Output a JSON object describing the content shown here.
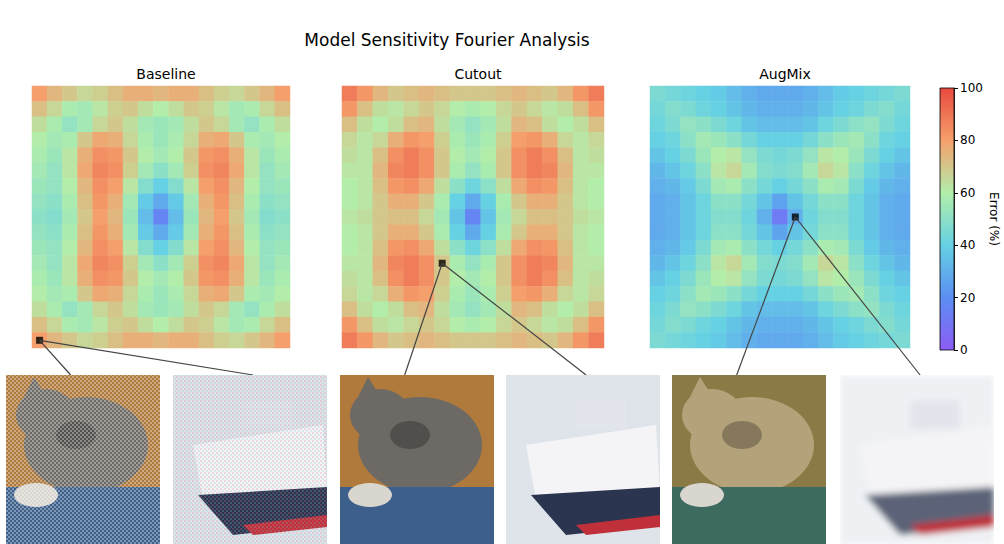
{
  "chart_data": {
    "type": "heatmap",
    "title": "Model Sensitivity Fourier Analysis",
    "tick_labels": false,
    "colorbar": {
      "label": "Error (%)",
      "range": [
        0,
        100
      ],
      "ticks": [
        0,
        20,
        40,
        60,
        80,
        100
      ]
    },
    "panels": [
      {
        "title": "Baseline",
        "marked_cell": [
          16,
          0
        ],
        "cells": [
          [
            80,
            74,
            70,
            66,
            68,
            72,
            76,
            76,
            74,
            76,
            76,
            72,
            68,
            66,
            70,
            74,
            80
          ],
          [
            72,
            66,
            58,
            56,
            62,
            68,
            70,
            64,
            60,
            64,
            70,
            68,
            62,
            56,
            58,
            66,
            72
          ],
          [
            64,
            58,
            52,
            56,
            66,
            70,
            64,
            56,
            54,
            56,
            64,
            70,
            66,
            56,
            52,
            58,
            64
          ],
          [
            60,
            56,
            58,
            70,
            78,
            76,
            66,
            58,
            54,
            58,
            66,
            76,
            78,
            70,
            58,
            56,
            60
          ],
          [
            58,
            54,
            62,
            76,
            84,
            82,
            70,
            60,
            56,
            60,
            70,
            82,
            84,
            76,
            62,
            54,
            58
          ],
          [
            56,
            52,
            62,
            78,
            86,
            84,
            68,
            56,
            50,
            56,
            68,
            84,
            86,
            78,
            62,
            52,
            56
          ],
          [
            54,
            52,
            60,
            74,
            84,
            80,
            62,
            48,
            40,
            48,
            62,
            80,
            84,
            74,
            60,
            52,
            54
          ],
          [
            52,
            50,
            58,
            72,
            82,
            76,
            56,
            38,
            28,
            38,
            56,
            76,
            82,
            72,
            58,
            50,
            52
          ],
          [
            50,
            48,
            56,
            70,
            80,
            74,
            54,
            34,
            16,
            34,
            54,
            74,
            80,
            70,
            56,
            48,
            50
          ],
          [
            52,
            50,
            58,
            72,
            82,
            76,
            56,
            38,
            28,
            38,
            56,
            76,
            82,
            72,
            58,
            50,
            52
          ],
          [
            54,
            52,
            60,
            74,
            84,
            80,
            62,
            48,
            40,
            48,
            62,
            80,
            84,
            74,
            60,
            52,
            54
          ],
          [
            56,
            52,
            62,
            78,
            86,
            84,
            68,
            56,
            50,
            56,
            68,
            84,
            86,
            78,
            62,
            52,
            56
          ],
          [
            58,
            54,
            62,
            76,
            84,
            82,
            70,
            60,
            56,
            60,
            70,
            82,
            84,
            76,
            62,
            54,
            58
          ],
          [
            60,
            56,
            58,
            70,
            78,
            76,
            66,
            58,
            54,
            58,
            66,
            76,
            78,
            70,
            58,
            56,
            60
          ],
          [
            64,
            58,
            52,
            56,
            66,
            70,
            64,
            56,
            54,
            56,
            64,
            70,
            66,
            56,
            52,
            58,
            64
          ],
          [
            72,
            66,
            58,
            56,
            62,
            68,
            70,
            64,
            60,
            64,
            70,
            68,
            62,
            56,
            58,
            66,
            72
          ],
          [
            80,
            74,
            70,
            66,
            68,
            72,
            76,
            76,
            74,
            76,
            76,
            72,
            68,
            66,
            70,
            74,
            80
          ]
        ]
      },
      {
        "title": "Cutout",
        "marked_cell": [
          11,
          6
        ],
        "cells": [
          [
            88,
            82,
            74,
            70,
            72,
            74,
            72,
            70,
            70,
            70,
            72,
            74,
            72,
            70,
            74,
            82,
            88
          ],
          [
            82,
            72,
            64,
            62,
            66,
            70,
            66,
            60,
            58,
            60,
            66,
            70,
            66,
            62,
            64,
            72,
            82
          ],
          [
            72,
            64,
            60,
            64,
            72,
            74,
            64,
            56,
            52,
            56,
            64,
            74,
            72,
            64,
            60,
            64,
            72
          ],
          [
            66,
            62,
            66,
            76,
            82,
            80,
            68,
            58,
            54,
            58,
            68,
            80,
            82,
            76,
            66,
            62,
            66
          ],
          [
            64,
            62,
            72,
            84,
            88,
            84,
            70,
            60,
            56,
            60,
            70,
            84,
            88,
            84,
            72,
            62,
            64
          ],
          [
            62,
            62,
            74,
            86,
            88,
            84,
            70,
            58,
            52,
            58,
            70,
            84,
            88,
            86,
            74,
            62,
            62
          ],
          [
            60,
            62,
            72,
            82,
            84,
            78,
            64,
            50,
            42,
            50,
            64,
            78,
            84,
            82,
            72,
            62,
            60
          ],
          [
            60,
            62,
            70,
            76,
            76,
            70,
            58,
            40,
            28,
            40,
            58,
            70,
            76,
            76,
            70,
            62,
            60
          ],
          [
            62,
            64,
            70,
            72,
            72,
            66,
            56,
            36,
            16,
            36,
            56,
            66,
            72,
            72,
            70,
            64,
            62
          ],
          [
            60,
            62,
            70,
            76,
            76,
            70,
            58,
            40,
            28,
            40,
            58,
            70,
            76,
            76,
            70,
            62,
            60
          ],
          [
            60,
            62,
            72,
            82,
            84,
            78,
            64,
            50,
            42,
            50,
            64,
            78,
            84,
            82,
            72,
            62,
            60
          ],
          [
            62,
            62,
            74,
            86,
            88,
            84,
            70,
            58,
            52,
            58,
            70,
            84,
            88,
            86,
            74,
            62,
            62
          ],
          [
            64,
            62,
            72,
            84,
            88,
            84,
            70,
            60,
            56,
            60,
            70,
            84,
            88,
            84,
            72,
            62,
            64
          ],
          [
            66,
            62,
            66,
            76,
            82,
            80,
            68,
            58,
            54,
            58,
            68,
            80,
            82,
            76,
            66,
            62,
            66
          ],
          [
            72,
            64,
            60,
            64,
            72,
            74,
            64,
            56,
            52,
            56,
            64,
            74,
            72,
            64,
            60,
            64,
            72
          ],
          [
            82,
            72,
            64,
            62,
            66,
            70,
            66,
            60,
            58,
            60,
            66,
            70,
            66,
            62,
            64,
            72,
            82
          ],
          [
            88,
            82,
            74,
            70,
            72,
            74,
            72,
            70,
            70,
            70,
            72,
            74,
            72,
            70,
            74,
            82,
            88
          ]
        ]
      },
      {
        "title": "AugMix",
        "marked_cell": [
          8,
          9
        ],
        "cells": [
          [
            46,
            44,
            42,
            40,
            38,
            34,
            30,
            28,
            28,
            28,
            30,
            34,
            38,
            40,
            42,
            44,
            46
          ],
          [
            44,
            48,
            46,
            42,
            40,
            36,
            32,
            30,
            30,
            30,
            32,
            36,
            40,
            42,
            46,
            48,
            44
          ],
          [
            42,
            46,
            52,
            50,
            46,
            42,
            36,
            34,
            34,
            34,
            36,
            42,
            46,
            50,
            52,
            46,
            42
          ],
          [
            40,
            42,
            50,
            56,
            54,
            50,
            44,
            40,
            40,
            40,
            44,
            50,
            54,
            56,
            50,
            42,
            40
          ],
          [
            36,
            40,
            46,
            54,
            60,
            62,
            52,
            46,
            44,
            46,
            52,
            62,
            60,
            54,
            46,
            40,
            36
          ],
          [
            32,
            36,
            42,
            50,
            62,
            66,
            56,
            48,
            46,
            48,
            56,
            66,
            62,
            50,
            42,
            36,
            32
          ],
          [
            30,
            32,
            38,
            46,
            56,
            58,
            50,
            44,
            40,
            44,
            50,
            58,
            56,
            46,
            38,
            32,
            30
          ],
          [
            28,
            30,
            36,
            42,
            50,
            50,
            44,
            36,
            26,
            36,
            44,
            50,
            50,
            42,
            36,
            30,
            28
          ],
          [
            28,
            30,
            36,
            42,
            48,
            48,
            42,
            30,
            12,
            30,
            42,
            48,
            48,
            42,
            36,
            30,
            28
          ],
          [
            28,
            30,
            36,
            42,
            50,
            50,
            44,
            36,
            26,
            36,
            44,
            50,
            50,
            42,
            36,
            30,
            28
          ],
          [
            30,
            32,
            38,
            46,
            56,
            58,
            50,
            44,
            40,
            44,
            50,
            58,
            56,
            46,
            38,
            32,
            30
          ],
          [
            32,
            36,
            42,
            50,
            62,
            66,
            56,
            48,
            46,
            48,
            56,
            66,
            62,
            50,
            42,
            36,
            32
          ],
          [
            36,
            40,
            46,
            54,
            60,
            62,
            52,
            46,
            44,
            46,
            52,
            62,
            60,
            54,
            46,
            40,
            36
          ],
          [
            40,
            42,
            50,
            56,
            54,
            50,
            44,
            40,
            40,
            40,
            44,
            50,
            54,
            56,
            50,
            42,
            40
          ],
          [
            42,
            46,
            52,
            50,
            46,
            42,
            36,
            34,
            34,
            34,
            36,
            42,
            46,
            50,
            52,
            46,
            42
          ],
          [
            44,
            48,
            46,
            42,
            40,
            36,
            32,
            30,
            30,
            30,
            32,
            36,
            40,
            42,
            46,
            48,
            44
          ],
          [
            46,
            44,
            42,
            40,
            38,
            34,
            30,
            28,
            28,
            28,
            30,
            34,
            38,
            40,
            42,
            44,
            46
          ]
        ]
      }
    ]
  }
}
